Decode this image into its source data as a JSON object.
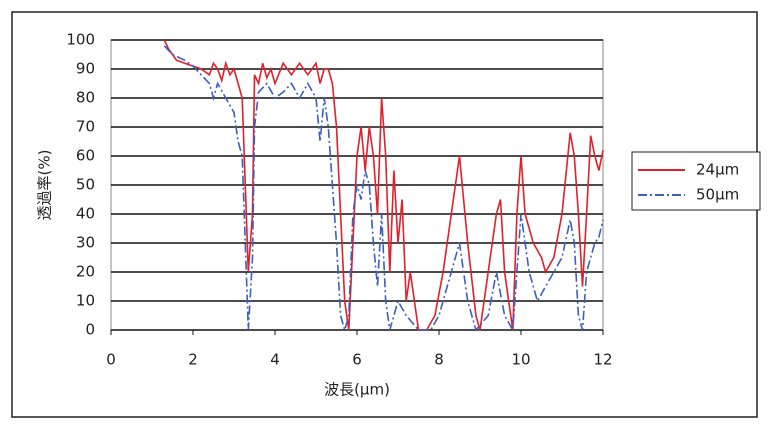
{
  "chart_data": {
    "type": "line",
    "xlabel": "波長(μm)",
    "ylabel": "透過率(%)",
    "xlim": [
      0,
      12
    ],
    "xticks": [
      0,
      2,
      4,
      6,
      8,
      10,
      12
    ],
    "ylim": [
      0,
      100
    ],
    "yticks": [
      0,
      10,
      20,
      30,
      40,
      50,
      60,
      70,
      80,
      90,
      100
    ],
    "grid": true,
    "legend": "right",
    "series": [
      {
        "name": "24μm",
        "color": "#e0202a",
        "style": "solid",
        "x": [
          1.3,
          1.4,
          1.6,
          1.8,
          2.0,
          2.2,
          2.4,
          2.5,
          2.6,
          2.7,
          2.8,
          2.9,
          3.0,
          3.1,
          3.2,
          3.3,
          3.35,
          3.45,
          3.5,
          3.6,
          3.7,
          3.8,
          3.9,
          4.0,
          4.2,
          4.4,
          4.6,
          4.8,
          5.0,
          5.1,
          5.2,
          5.3,
          5.4,
          5.5,
          5.6,
          5.7,
          5.8,
          5.9,
          6.0,
          6.1,
          6.2,
          6.3,
          6.4,
          6.5,
          6.6,
          6.7,
          6.8,
          6.9,
          7.0,
          7.1,
          7.2,
          7.3,
          7.5,
          7.7,
          7.9,
          8.1,
          8.3,
          8.5,
          8.7,
          8.9,
          9.0,
          9.2,
          9.4,
          9.5,
          9.6,
          9.8,
          9.9,
          10.0,
          10.1,
          10.3,
          10.5,
          10.6,
          10.8,
          11.0,
          11.2,
          11.3,
          11.4,
          11.5,
          11.6,
          11.7,
          11.8,
          11.9,
          12.0
        ],
        "values": [
          100,
          97,
          93,
          92,
          91,
          90,
          88,
          92,
          90,
          86,
          92,
          88,
          90,
          85,
          80,
          40,
          20,
          40,
          88,
          85,
          92,
          87,
          90,
          85,
          92,
          88,
          92,
          88,
          92,
          85,
          90,
          90,
          85,
          70,
          40,
          10,
          0,
          30,
          60,
          70,
          55,
          70,
          60,
          40,
          80,
          60,
          20,
          55,
          30,
          45,
          10,
          20,
          0,
          0,
          5,
          20,
          40,
          60,
          30,
          5,
          0,
          20,
          40,
          45,
          20,
          0,
          40,
          60,
          40,
          30,
          25,
          20,
          25,
          40,
          68,
          60,
          40,
          15,
          40,
          67,
          60,
          55,
          62
        ]
      },
      {
        "name": "50μm",
        "color": "#3a5fc0",
        "style": "dashdot",
        "x": [
          1.3,
          1.5,
          1.8,
          2.0,
          2.2,
          2.4,
          2.5,
          2.6,
          2.8,
          3.0,
          3.1,
          3.2,
          3.3,
          3.35,
          3.45,
          3.5,
          3.6,
          3.8,
          4.0,
          4.2,
          4.4,
          4.6,
          4.8,
          5.0,
          5.1,
          5.2,
          5.3,
          5.4,
          5.5,
          5.6,
          5.7,
          5.8,
          5.9,
          6.0,
          6.1,
          6.2,
          6.3,
          6.4,
          6.5,
          6.6,
          6.7,
          6.8,
          7.0,
          7.2,
          7.5,
          7.8,
          8.0,
          8.3,
          8.5,
          8.7,
          8.9,
          9.2,
          9.4,
          9.6,
          9.8,
          10.0,
          10.2,
          10.4,
          10.6,
          10.8,
          11.0,
          11.2,
          11.3,
          11.4,
          11.5,
          11.6,
          11.8,
          11.9,
          12.0
        ],
        "values": [
          98,
          95,
          93,
          91,
          88,
          85,
          80,
          85,
          80,
          75,
          65,
          60,
          20,
          0,
          25,
          70,
          82,
          85,
          80,
          82,
          85,
          80,
          85,
          80,
          65,
          80,
          70,
          50,
          30,
          5,
          0,
          5,
          40,
          50,
          45,
          55,
          50,
          30,
          15,
          40,
          10,
          0,
          10,
          5,
          0,
          0,
          5,
          20,
          30,
          10,
          0,
          5,
          20,
          5,
          0,
          40,
          20,
          10,
          15,
          20,
          25,
          38,
          30,
          5,
          0,
          20,
          30,
          32,
          38
        ]
      }
    ]
  }
}
